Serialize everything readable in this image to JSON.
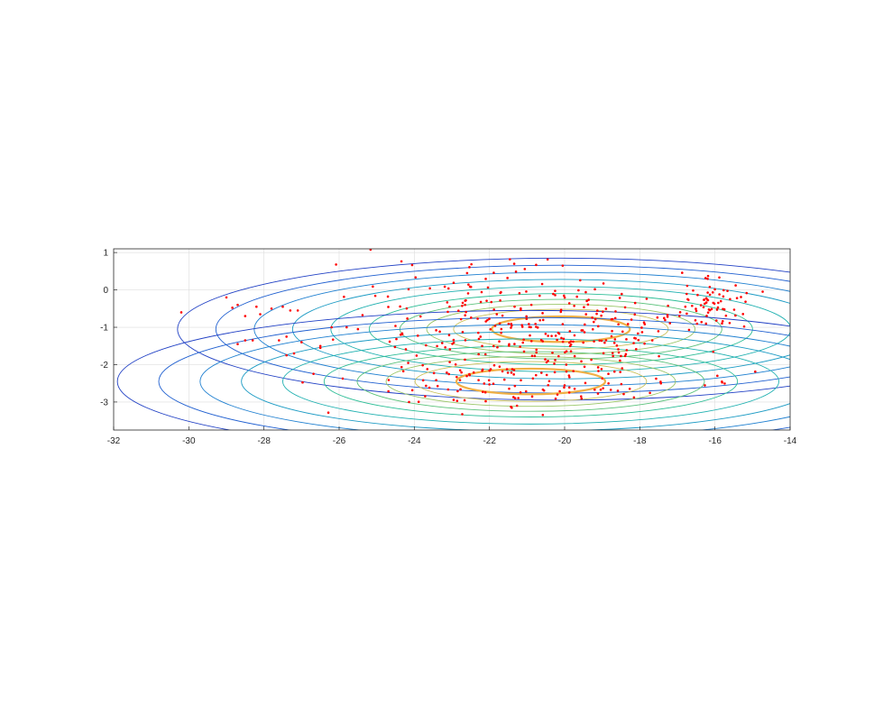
{
  "chart_data": {
    "type": "scatter",
    "title": "",
    "xlabel": "",
    "ylabel": "",
    "xlim": [
      -32,
      -14
    ],
    "ylim": [
      -3.75,
      1.1
    ],
    "grid": true,
    "x_ticks": [
      -32,
      -30,
      -28,
      -26,
      -24,
      -22,
      -20,
      -18,
      -16,
      -14
    ],
    "x_tick_labels": [
      "-32",
      "-30",
      "-28",
      "-26",
      "-24",
      "-22",
      "-20",
      "-18",
      "-16",
      "-14"
    ],
    "y_ticks": [
      1,
      0,
      -1,
      -2,
      -3
    ],
    "y_tick_labels": [
      "1",
      "0",
      "-1",
      "-2",
      "-3"
    ],
    "colors": {
      "points": "#ff0000",
      "grid": "#dddddd",
      "axes": "#262626",
      "contour_levels": [
        "#1f3fc4",
        "#1f5fd0",
        "#1e7fd0",
        "#1c9bc4",
        "#1eb0b0",
        "#2cbd96",
        "#5cc27c",
        "#98c566",
        "#c9c058",
        "#f0b046"
      ]
    },
    "gaussian_components": [
      {
        "mean": [
          -20.1,
          -1.05
        ],
        "semi_axes_at_outer_level": [
          10.2,
          1.9
        ],
        "weight": 1.0
      },
      {
        "mean": [
          -20.9,
          -2.45
        ],
        "semi_axes_at_outer_level": [
          11.0,
          1.9
        ],
        "weight": 1.0
      }
    ],
    "contour_level_scales": [
      1.0,
      0.9,
      0.8,
      0.7,
      0.6,
      0.5,
      0.42,
      0.35,
      0.28,
      0.18
    ],
    "scatter_series": [
      {
        "values": [
          [
            -30.2,
            -0.6
          ],
          [
            -29.0,
            -0.2
          ],
          [
            -28.7,
            -0.4
          ],
          [
            -28.5,
            -0.7
          ],
          [
            -28.2,
            -0.45
          ],
          [
            -28.1,
            -0.65
          ],
          [
            -27.8,
            -0.5
          ],
          [
            -27.5,
            -0.45
          ],
          [
            -27.3,
            -0.55
          ],
          [
            -27.1,
            -0.55
          ],
          [
            -28.7,
            -1.45
          ],
          [
            -28.5,
            -1.35
          ],
          [
            -28.3,
            -1.35
          ],
          [
            -27.6,
            -1.35
          ],
          [
            -27.4,
            -1.75
          ],
          [
            -27.2,
            -1.7
          ],
          [
            -27.0,
            -1.4
          ],
          [
            -26.5,
            -1.5
          ],
          [
            -26.2,
            -1.0
          ],
          [
            -25.8,
            -1.0
          ],
          [
            -25.5,
            -1.05
          ],
          [
            -26.5,
            -1.55
          ],
          [
            -27.4,
            -1.25
          ]
        ]
      },
      {
        "cluster_points": [
          {
            "center": [
              -20.3,
              -0.9
            ],
            "spread": [
              2.0,
              0.45
            ],
            "count": 110
          },
          {
            "center": [
              -20.6,
              -2.45
            ],
            "spread": [
              2.2,
              0.4
            ],
            "count": 110
          },
          {
            "center": [
              -19.0,
              -1.55
            ],
            "spread": [
              0.9,
              0.3
            ],
            "count": 45
          },
          {
            "center": [
              -16.2,
              -0.4
            ],
            "spread": [
              0.5,
              0.35
            ],
            "count": 70
          },
          {
            "center": [
              -23.0,
              -1.6
            ],
            "spread": [
              1.8,
              0.9
            ],
            "count": 90
          },
          {
            "center": [
              -22.0,
              0.0
            ],
            "spread": [
              1.6,
              0.5
            ],
            "count": 45
          }
        ],
        "seed": 20240531
      }
    ]
  }
}
